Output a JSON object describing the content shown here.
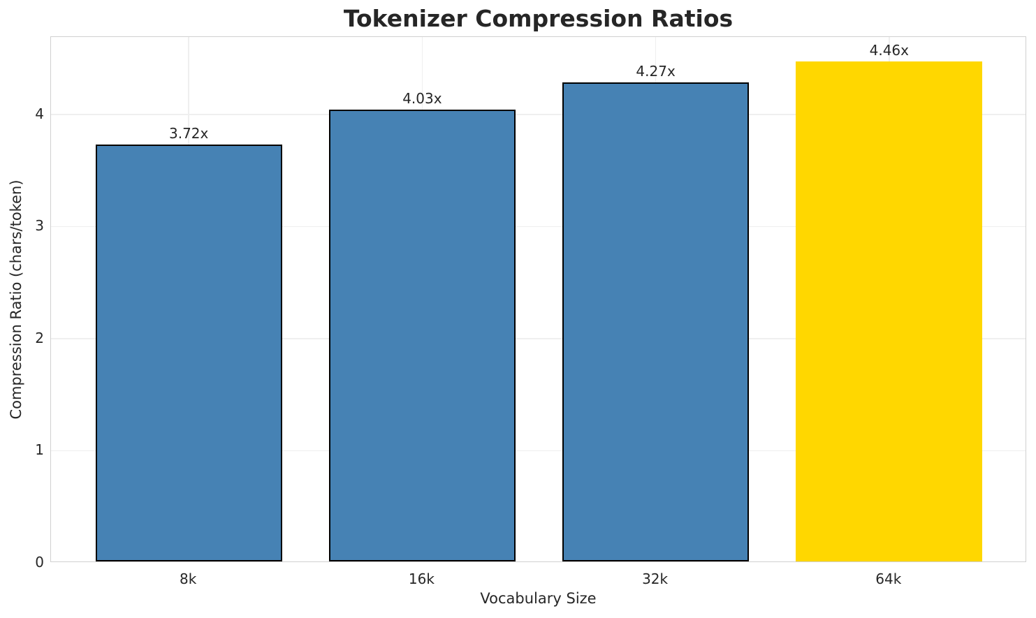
{
  "chart_data": {
    "type": "bar",
    "title": "Tokenizer Compression Ratios",
    "xlabel": "Vocabulary Size",
    "ylabel": "Compression Ratio (chars/token)",
    "categories": [
      "8k",
      "16k",
      "32k",
      "64k"
    ],
    "values": [
      3.72,
      4.03,
      4.27,
      4.46
    ],
    "bar_labels": [
      "3.72x",
      "4.03x",
      "4.27x",
      "4.46x"
    ],
    "bar_colors": [
      "#4682B4",
      "#4682B4",
      "#4682B4",
      "#FFD700"
    ],
    "bar_edge_colors": [
      "#000000",
      "#000000",
      "#000000",
      "none"
    ],
    "yticks": [
      "0",
      "1",
      "2",
      "3",
      "4"
    ],
    "ylim": [
      0,
      4.69
    ],
    "xlim": [
      -0.59,
      3.59
    ],
    "bar_width": 0.8,
    "grid": "both",
    "legend": "none",
    "colors": {
      "text": "#262626",
      "spine": "#d0d0d0",
      "grid": "#efefef",
      "background": "#ffffff"
    }
  }
}
